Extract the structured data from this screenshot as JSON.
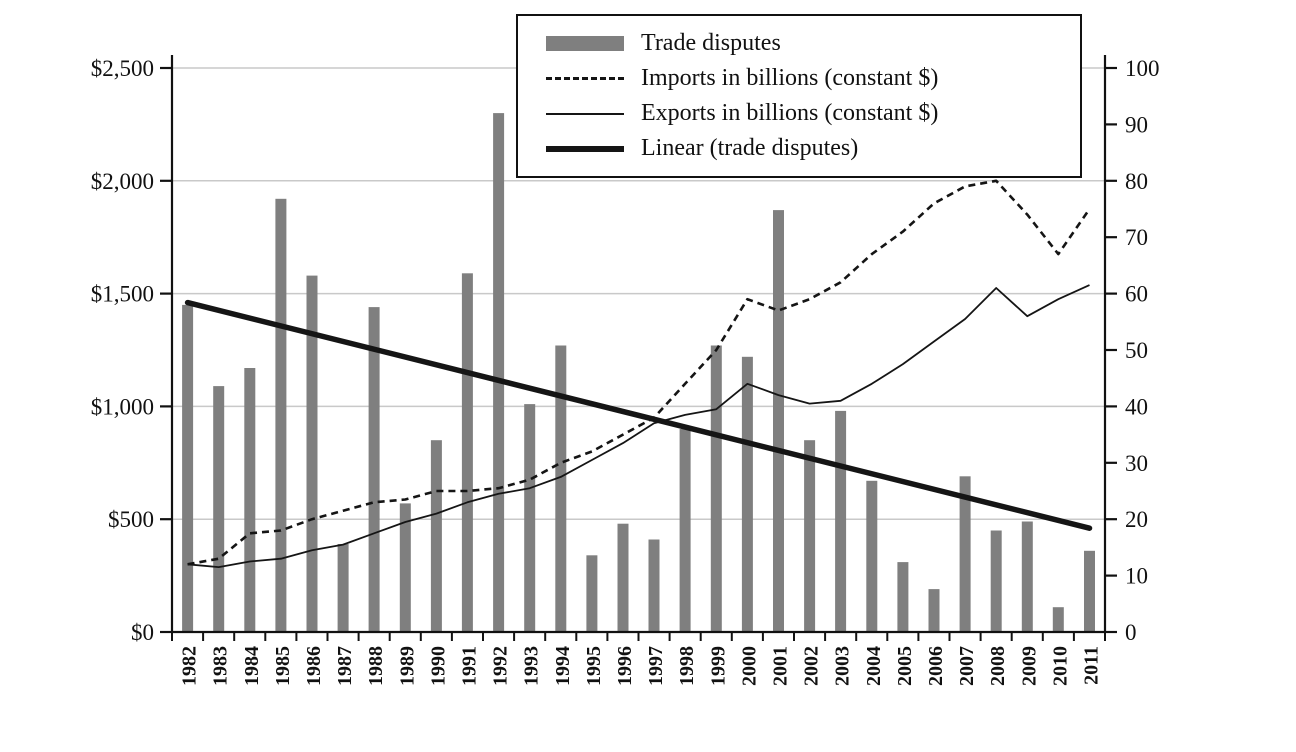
{
  "page": {
    "background_color": "#ffffff",
    "text_color": "#111111"
  },
  "legend": {
    "items": [
      {
        "label": "Trade disputes",
        "swatch": "bar-swatch"
      },
      {
        "label": "Imports in billions (constant $)",
        "swatch": "dashed-line-swatch"
      },
      {
        "label": "Exports in billions (constant $)",
        "swatch": "thin-line-swatch"
      },
      {
        "label": "Linear (trade disputes)",
        "swatch": "thick-line-swatch"
      }
    ]
  },
  "chart_data": {
    "type": "bar",
    "subtype": "bar-line-combo",
    "title": "",
    "xlabel": "",
    "ylabel_left": "",
    "ylabel_right": "",
    "grid": true,
    "legend_position": "top-center",
    "categories": [
      "1982",
      "1983",
      "1984",
      "1985",
      "1986",
      "1987",
      "1988",
      "1989",
      "1990",
      "1991",
      "1992",
      "1993",
      "1994",
      "1995",
      "1996",
      "1997",
      "1998",
      "1999",
      "2000",
      "2001",
      "2002",
      "2003",
      "2004",
      "2005",
      "2006",
      "2007",
      "2008",
      "2009",
      "2010",
      "2011"
    ],
    "left_axis": {
      "min": 0,
      "max": 2500,
      "step": 500,
      "tick_labels": [
        "$0",
        "$500",
        "$1,000",
        "$1,500",
        "$2,000",
        "$2,500"
      ]
    },
    "right_axis": {
      "min": 0,
      "max": 100,
      "step": 10,
      "tick_labels": [
        "0",
        "10",
        "20",
        "30",
        "40",
        "50",
        "60",
        "70",
        "80",
        "90",
        "100"
      ]
    },
    "series": [
      {
        "name": "Trade disputes",
        "type": "bar",
        "axis": "left",
        "color": "#7f7f7f",
        "values": [
          1450,
          1090,
          1170,
          1920,
          1580,
          390,
          1440,
          570,
          850,
          1590,
          2300,
          1010,
          1270,
          340,
          480,
          410,
          900,
          1270,
          1220,
          1870,
          850,
          980,
          670,
          310,
          190,
          690,
          450,
          490,
          110,
          360
        ]
      },
      {
        "name": "Imports in billions (constant $)",
        "type": "line",
        "style": "dashed",
        "axis": "right",
        "color": "#151515",
        "values": [
          12,
          13,
          17.5,
          18,
          20,
          21.5,
          23,
          23.5,
          25,
          25,
          25.5,
          27,
          30,
          32,
          35,
          38,
          44,
          50,
          59,
          57,
          59,
          62,
          67,
          71,
          76,
          79,
          80,
          74,
          67,
          75
        ]
      },
      {
        "name": "Exports in billions (constant $)",
        "type": "line",
        "style": "solid-thin",
        "axis": "right",
        "color": "#151515",
        "values": [
          12,
          11.5,
          12.5,
          13,
          14.5,
          15.5,
          17.5,
          19.5,
          21,
          23,
          24.5,
          25.5,
          27.5,
          30.5,
          33.5,
          37,
          38.5,
          39.5,
          44,
          42,
          40.5,
          41,
          44,
          47.5,
          51.5,
          55.5,
          61,
          56,
          59,
          61.5
        ]
      },
      {
        "name": "Linear (trade disputes)",
        "type": "trendline",
        "axis": "left",
        "color": "#151515",
        "start_value": 1460,
        "end_value": 460
      }
    ]
  }
}
